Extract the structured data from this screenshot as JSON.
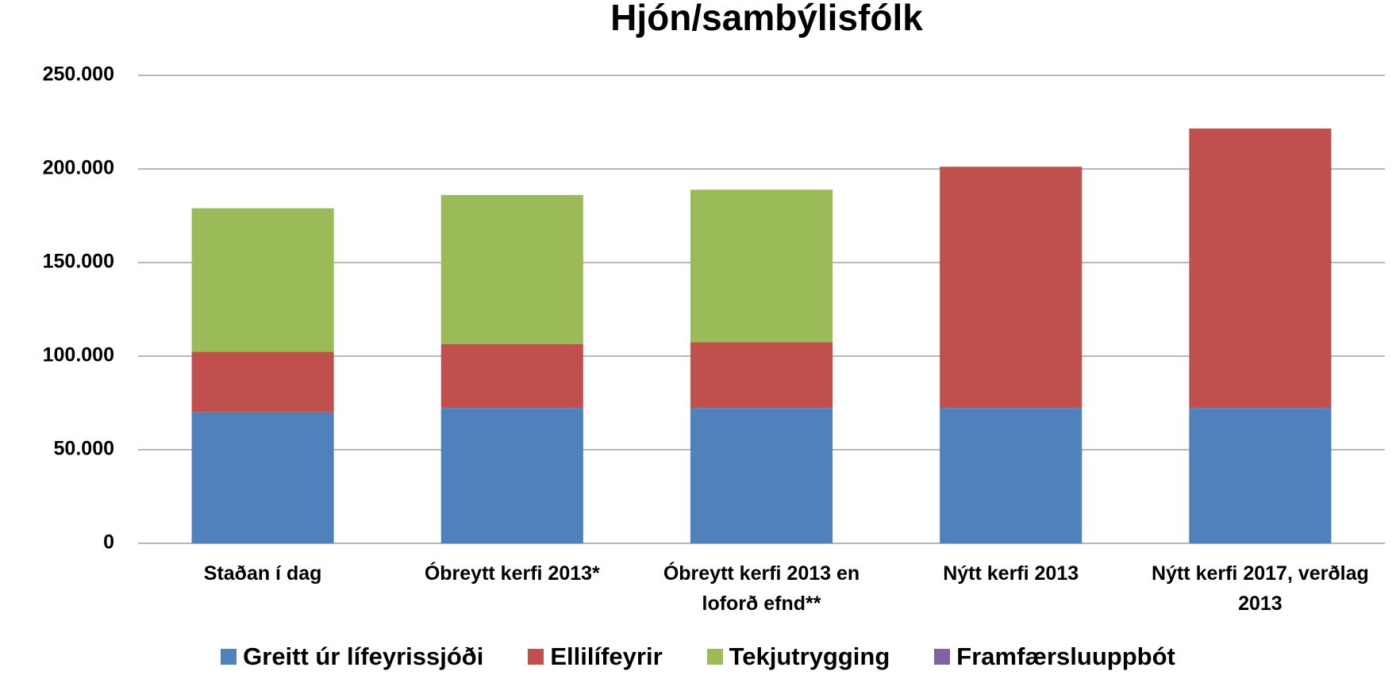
{
  "chart_data": {
    "type": "stacked_bar",
    "title": "Hjón/sambýlisfólk",
    "categories": [
      "Staðan í dag",
      "Óbreytt kerfi 2013*",
      "Óbreytt kerfi 2013 en loforð efnd**",
      "Nýtt kerfi 2013",
      "Nýtt kerfi 2017, verðlag 2013"
    ],
    "series": [
      {
        "name": "Greitt úr lífeyrissjóði",
        "color": "#4f81bd",
        "values": [
          70000,
          72400,
          72400,
          72400,
          72400
        ]
      },
      {
        "name": "Ellilífeyrir",
        "color": "#c0504d",
        "values": [
          32300,
          34100,
          35100,
          128800,
          149200
        ]
      },
      {
        "name": "Tekjutrygging",
        "color": "#9bbb59",
        "values": [
          76700,
          79600,
          81400,
          0,
          0
        ]
      },
      {
        "name": "Framfærsluuppbót",
        "color": "#8064a2",
        "values": [
          0,
          0,
          0,
          0,
          0
        ]
      }
    ],
    "ylim": [
      0,
      250000
    ],
    "yticks": [
      {
        "value": 0,
        "label": "0"
      },
      {
        "value": 50000,
        "label": "50.000"
      },
      {
        "value": 100000,
        "label": "100.000"
      },
      {
        "value": 150000,
        "label": "150.000"
      },
      {
        "value": 200000,
        "label": "200.000"
      },
      {
        "value": 250000,
        "label": "250.000"
      }
    ],
    "grid": true,
    "legend": "bottom"
  }
}
